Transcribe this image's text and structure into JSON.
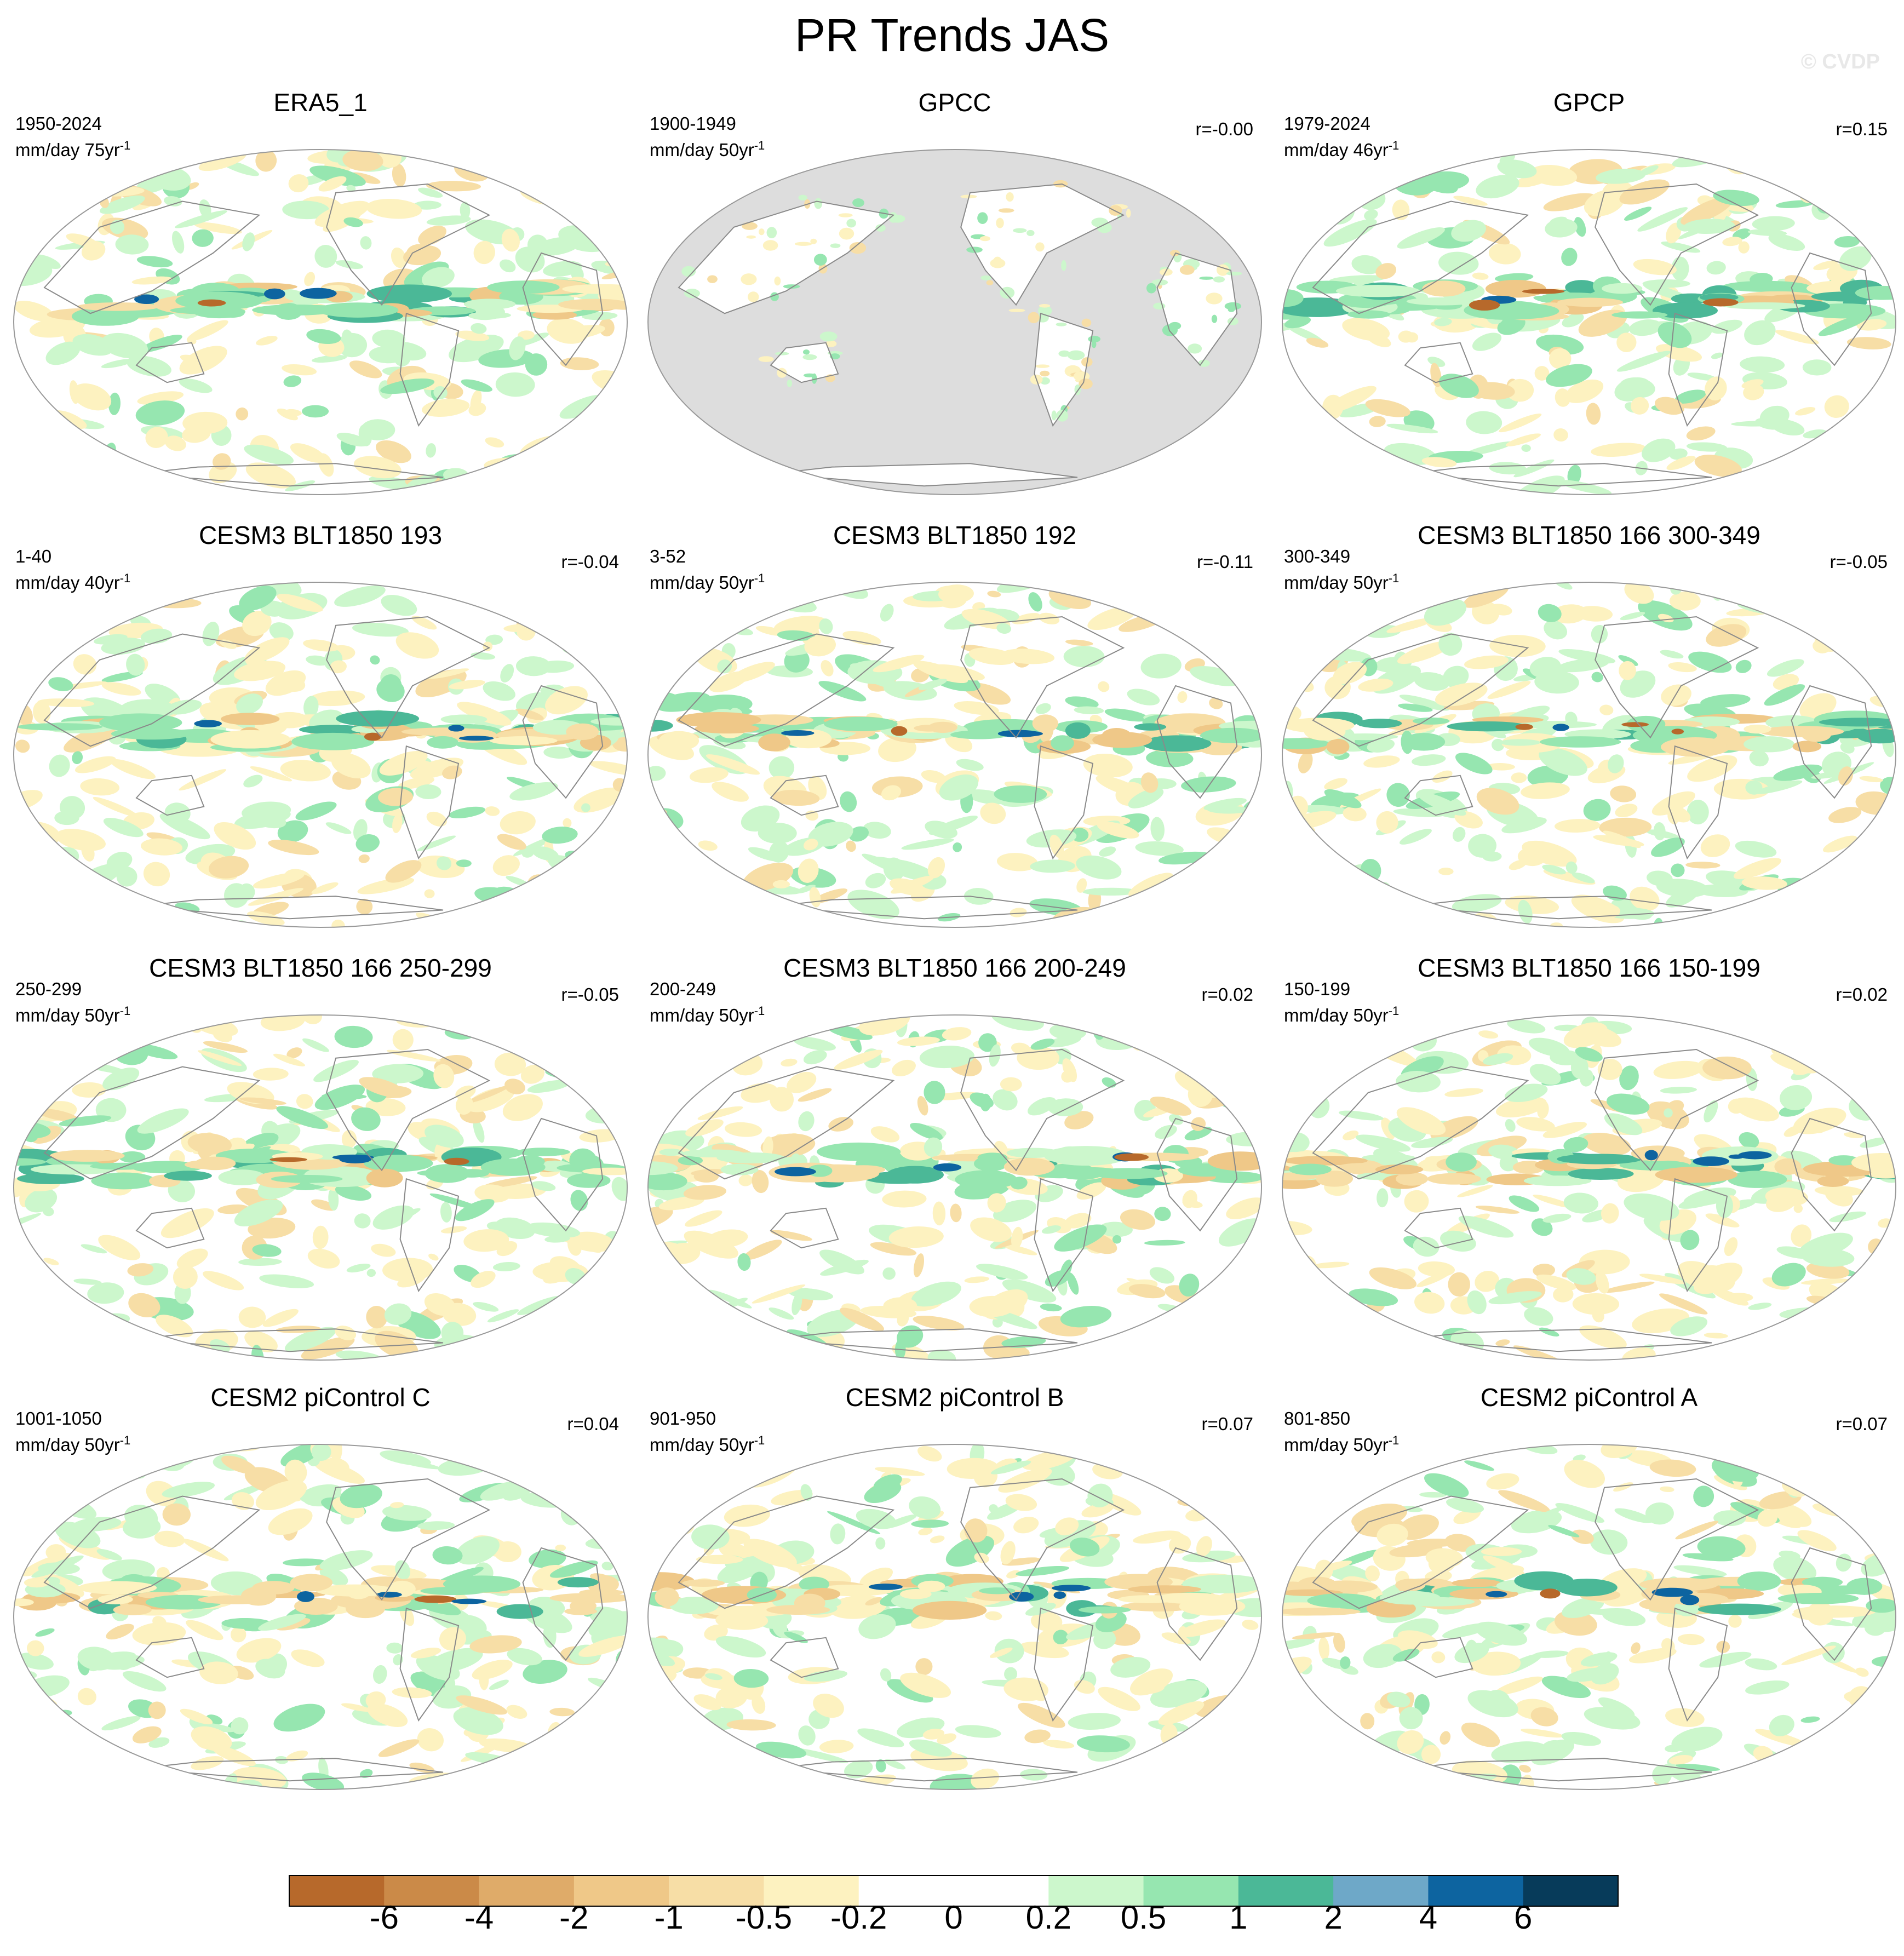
{
  "title": "PR Trends JAS",
  "watermark": "© CVDP",
  "colorbar": {
    "colors": [
      "#b7692b",
      "#cb8a48",
      "#dfab69",
      "#efc888",
      "#f7dea6",
      "#fdf2c0",
      "#ffffff",
      "#ffffff",
      "#ccf7cc",
      "#96e6b0",
      "#4bb897",
      "#6ea8c8",
      "#0d64a0",
      "#073b5a"
    ],
    "labels": [
      "-6",
      "-4",
      "-2",
      "-1",
      "-0.5",
      "-0.2",
      "0",
      "0.2",
      "0.5",
      "1",
      "2",
      "4",
      "6"
    ]
  },
  "panels": [
    {
      "title": "ERA5_1",
      "period": "1950-2024",
      "units": "mm/day 75yr",
      "unit_exp": "-1",
      "corr": "",
      "land_gray": false,
      "tropical_band": "mixed-wet"
    },
    {
      "title": "GPCC",
      "period": "1900-1949",
      "units": "mm/day 50yr",
      "unit_exp": "-1",
      "corr": "r=-0.00",
      "land_gray": true,
      "tropical_band": "land-only"
    },
    {
      "title": "GPCP",
      "period": "1979-2024",
      "units": "mm/day 46yr",
      "unit_exp": "-1",
      "corr": "r=0.15",
      "land_gray": false,
      "tropical_band": "wet"
    },
    {
      "title": "CESM3 BLT1850 193",
      "period": "1-40",
      "units": "mm/day 40yr",
      "unit_exp": "-1",
      "corr": "r=-0.04",
      "land_gray": false,
      "tropical_band": "mixed"
    },
    {
      "title": "CESM3 BLT1850 192",
      "period": "3-52",
      "units": "mm/day 50yr",
      "unit_exp": "-1",
      "corr": "r=-0.11",
      "land_gray": false,
      "tropical_band": "mixed"
    },
    {
      "title": "CESM3 BLT1850 166 300-349",
      "period": "300-349",
      "units": "mm/day 50yr",
      "unit_exp": "-1",
      "corr": "r=-0.05",
      "land_gray": false,
      "tropical_band": "mixed"
    },
    {
      "title": "CESM3 BLT1850 166 250-299",
      "period": "250-299",
      "units": "mm/day 50yr",
      "unit_exp": "-1",
      "corr": "r=-0.05",
      "land_gray": false,
      "tropical_band": "wet"
    },
    {
      "title": "CESM3 BLT1850 166 200-249",
      "period": "200-249",
      "units": "mm/day 50yr",
      "unit_exp": "-1",
      "corr": "r=0.02",
      "land_gray": false,
      "tropical_band": "wet"
    },
    {
      "title": "CESM3 BLT1850 166 150-199",
      "period": "150-199",
      "units": "mm/day 50yr",
      "unit_exp": "-1",
      "corr": "r=0.02",
      "land_gray": false,
      "tropical_band": "mixed"
    },
    {
      "title": "CESM2 piControl C",
      "period": "1001-1050",
      "units": "mm/day 50yr",
      "unit_exp": "-1",
      "corr": "r=0.04",
      "land_gray": false,
      "tropical_band": "dry"
    },
    {
      "title": "CESM2 piControl B",
      "period": "901-950",
      "units": "mm/day 50yr",
      "unit_exp": "-1",
      "corr": "r=0.07",
      "land_gray": false,
      "tropical_band": "dry"
    },
    {
      "title": "CESM2 piControl A",
      "period": "801-850",
      "units": "mm/day 50yr",
      "unit_exp": "-1",
      "corr": "r=0.07",
      "land_gray": false,
      "tropical_band": "dry"
    }
  ]
}
